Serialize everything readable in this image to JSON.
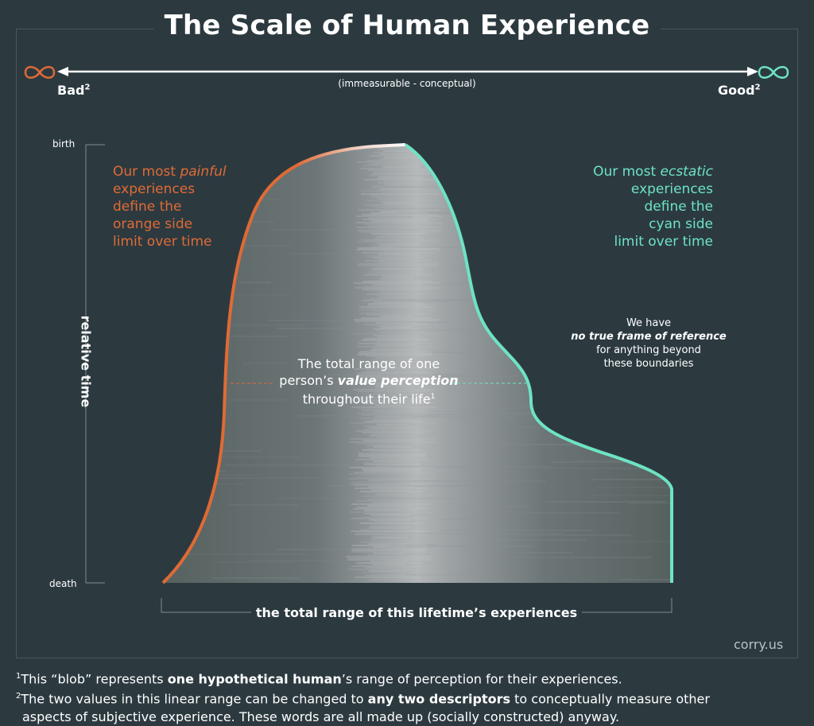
{
  "title": "The Scale of Human Experience",
  "scale": {
    "left_label": "Bad",
    "left_sup": "2",
    "right_label": "Good",
    "right_sup": "2",
    "subtitle": "(immeasurable - conceptual)",
    "left_icon": "infinity-icon",
    "right_icon": "infinity-icon"
  },
  "time_axis": {
    "start_label": "birth",
    "end_label": "death",
    "axis_label": "relative time"
  },
  "annotations": {
    "painful": [
      "Our most ",
      "painful",
      "experiences",
      "define the",
      "orange side",
      "limit over time"
    ],
    "ecstatic": [
      "Our most ",
      "ecstatic",
      "experiences",
      "define the",
      "cyan side",
      "limit over time"
    ],
    "reference_line1": "We have",
    "reference_line2": "no true frame of reference",
    "reference_line3": "for anything beyond",
    "reference_line4": "these boundaries",
    "center_line1": "The total range of one",
    "center_line2a": "person’s ",
    "center_line2b": "value perception",
    "center_line3": "throughout their life",
    "center_sup": "1"
  },
  "bottom_label": "the total range of this lifetime’s experiences",
  "credit": "corry.us",
  "footnotes": {
    "f1_sup": "1",
    "f1_a": "This “blob” represents ",
    "f1_b": "one hypothetical human",
    "f1_c": "’s range of perception for their experiences.",
    "f2_sup": "2",
    "f2_a": "The two values in this linear range can be changed to ",
    "f2_b": "any two descriptors",
    "f2_c": " to conceptually measure other",
    "f2_d": "aspects of subjective experience. These words are all made up (socially constructed) anyway."
  },
  "colors": {
    "background": "#2c3a40",
    "orange": "#e06a35",
    "cyan": "#6ee3c4",
    "blob": "#5f6a6e",
    "blob_light": "#a9adaf"
  }
}
